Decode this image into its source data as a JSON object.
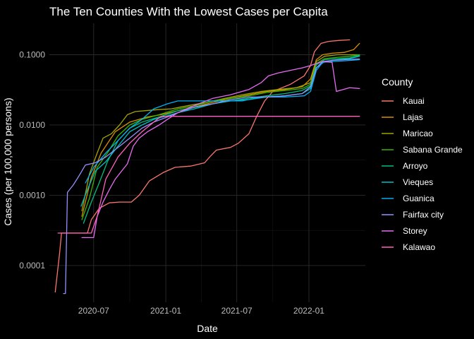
{
  "chart_data": {
    "type": "line",
    "title": "The Ten Counties With the Lowest Cases per Capita",
    "xlabel": "Date",
    "ylabel": "Cases (per 100,000 persons)",
    "x_ticks": [
      "2020-07",
      "2021-01",
      "2021-07",
      "2022-01"
    ],
    "y_ticks": [
      {
        "value": 0.0001,
        "label": "0.0001"
      },
      {
        "value": 0.001,
        "label": "0.0010"
      },
      {
        "value": 0.01,
        "label": "0.0100"
      },
      {
        "value": 0.1,
        "label": "0.1000"
      }
    ],
    "xlim": [
      "2020-03-10",
      "2022-05-25"
    ],
    "ylim": [
      3e-05,
      0.28
    ],
    "y_scale": "log10",
    "grid": true,
    "legend_title": "County",
    "legend_position": "right",
    "series": [
      {
        "name": "Kauai",
        "color": "#F8766D",
        "points": [
          [
            "2020-03-25",
            4.2e-05
          ],
          [
            "2020-04-05",
            0.00015
          ],
          [
            "2020-04-10",
            0.00029
          ],
          [
            "2020-05-15",
            0.00029
          ],
          [
            "2020-06-15",
            0.00029
          ],
          [
            "2020-06-25",
            0.00045
          ],
          [
            "2020-07-15",
            0.00065
          ],
          [
            "2020-08-10",
            0.00078
          ],
          [
            "2020-09-05",
            0.0008
          ],
          [
            "2020-10-05",
            0.0008
          ],
          [
            "2020-10-25",
            0.001
          ],
          [
            "2020-11-20",
            0.0016
          ],
          [
            "2020-12-25",
            0.0021
          ],
          [
            "2021-01-25",
            0.0025
          ],
          [
            "2021-03-05",
            0.0026
          ],
          [
            "2021-04-10",
            0.0029
          ],
          [
            "2021-04-25",
            0.0036
          ],
          [
            "2021-05-10",
            0.0044
          ],
          [
            "2021-06-15",
            0.0048
          ],
          [
            "2021-07-05",
            0.0055
          ],
          [
            "2021-08-01",
            0.0075
          ],
          [
            "2021-08-20",
            0.013
          ],
          [
            "2021-09-10",
            0.022
          ],
          [
            "2021-10-01",
            0.03
          ],
          [
            "2021-11-15",
            0.038
          ],
          [
            "2021-12-20",
            0.05
          ],
          [
            "2022-01-05",
            0.07
          ],
          [
            "2022-01-15",
            0.11
          ],
          [
            "2022-02-01",
            0.145
          ],
          [
            "2022-02-20",
            0.155
          ],
          [
            "2022-03-20",
            0.16
          ],
          [
            "2022-04-15",
            0.163
          ]
        ]
      },
      {
        "name": "Lajas",
        "color": "#D89000",
        "points": [
          [
            "2020-06-01",
            0.0005
          ],
          [
            "2020-06-25",
            0.0018
          ],
          [
            "2020-07-20",
            0.004
          ],
          [
            "2020-08-25",
            0.008
          ],
          [
            "2020-10-01",
            0.011
          ],
          [
            "2020-11-15",
            0.013
          ],
          [
            "2020-12-20",
            0.014
          ],
          [
            "2021-02-01",
            0.016
          ],
          [
            "2021-03-15",
            0.018
          ],
          [
            "2021-05-01",
            0.021
          ],
          [
            "2021-06-15",
            0.024
          ],
          [
            "2021-08-01",
            0.027
          ],
          [
            "2021-09-15",
            0.03
          ],
          [
            "2021-11-01",
            0.032
          ],
          [
            "2021-12-15",
            0.035
          ],
          [
            "2022-01-05",
            0.045
          ],
          [
            "2022-01-20",
            0.085
          ],
          [
            "2022-02-05",
            0.1
          ],
          [
            "2022-03-01",
            0.105
          ],
          [
            "2022-04-01",
            0.108
          ],
          [
            "2022-04-25",
            0.118
          ],
          [
            "2022-05-10",
            0.145
          ]
        ]
      },
      {
        "name": "Maricao",
        "color": "#A3A500",
        "points": [
          [
            "2020-06-01",
            0.0006
          ],
          [
            "2020-06-20",
            0.002
          ],
          [
            "2020-07-10",
            0.004
          ],
          [
            "2020-07-25",
            0.0065
          ],
          [
            "2020-08-15",
            0.0075
          ],
          [
            "2020-09-05",
            0.01
          ],
          [
            "2020-09-25",
            0.014
          ],
          [
            "2020-10-15",
            0.0155
          ],
          [
            "2020-11-10",
            0.016
          ],
          [
            "2020-12-10",
            0.0165
          ],
          [
            "2021-01-15",
            0.017
          ],
          [
            "2021-03-01",
            0.019
          ],
          [
            "2021-04-15",
            0.021
          ],
          [
            "2021-06-01",
            0.024
          ],
          [
            "2021-07-15",
            0.027
          ],
          [
            "2021-09-01",
            0.03
          ],
          [
            "2021-10-15",
            0.032
          ],
          [
            "2021-12-01",
            0.034
          ],
          [
            "2022-01-05",
            0.04
          ],
          [
            "2022-01-20",
            0.08
          ],
          [
            "2022-02-10",
            0.095
          ],
          [
            "2022-03-15",
            0.1
          ],
          [
            "2022-04-15",
            0.1
          ],
          [
            "2022-05-10",
            0.1
          ]
        ]
      },
      {
        "name": "Sabana Grande",
        "color": "#39B600",
        "points": [
          [
            "2020-06-01",
            0.00045
          ],
          [
            "2020-06-20",
            0.0009
          ],
          [
            "2020-07-10",
            0.0025
          ],
          [
            "2020-08-05",
            0.004
          ],
          [
            "2020-09-01",
            0.007
          ],
          [
            "2020-10-01",
            0.01
          ],
          [
            "2020-11-01",
            0.012
          ],
          [
            "2020-12-15",
            0.014
          ],
          [
            "2021-02-01",
            0.017
          ],
          [
            "2021-03-20",
            0.019
          ],
          [
            "2021-05-01",
            0.022
          ],
          [
            "2021-06-15",
            0.024
          ],
          [
            "2021-08-01",
            0.026
          ],
          [
            "2021-09-15",
            0.029
          ],
          [
            "2021-11-01",
            0.031
          ],
          [
            "2021-12-15",
            0.033
          ],
          [
            "2022-01-05",
            0.038
          ],
          [
            "2022-01-20",
            0.075
          ],
          [
            "2022-02-10",
            0.088
          ],
          [
            "2022-03-15",
            0.092
          ],
          [
            "2022-04-15",
            0.095
          ],
          [
            "2022-05-10",
            0.1
          ]
        ]
      },
      {
        "name": "Arroyo",
        "color": "#00BF7D",
        "points": [
          [
            "2020-06-05",
            0.0004
          ],
          [
            "2020-06-25",
            0.0008
          ],
          [
            "2020-07-15",
            0.0015
          ],
          [
            "2020-08-05",
            0.003
          ],
          [
            "2020-09-01",
            0.006
          ],
          [
            "2020-10-01",
            0.009
          ],
          [
            "2020-11-01",
            0.011
          ],
          [
            "2020-12-15",
            0.013
          ],
          [
            "2021-02-01",
            0.016
          ],
          [
            "2021-03-20",
            0.018
          ],
          [
            "2021-05-01",
            0.02
          ],
          [
            "2021-06-15",
            0.022
          ],
          [
            "2021-08-01",
            0.024
          ],
          [
            "2021-09-15",
            0.026
          ],
          [
            "2021-11-01",
            0.028
          ],
          [
            "2021-12-15",
            0.031
          ],
          [
            "2022-01-05",
            0.036
          ],
          [
            "2022-01-20",
            0.072
          ],
          [
            "2022-02-10",
            0.085
          ],
          [
            "2022-03-15",
            0.088
          ],
          [
            "2022-04-15",
            0.09
          ],
          [
            "2022-05-10",
            0.098
          ]
        ]
      },
      {
        "name": "Vieques",
        "color": "#00BFC4",
        "points": [
          [
            "2020-05-30",
            0.0007
          ],
          [
            "2020-06-15",
            0.0012
          ],
          [
            "2020-07-05",
            0.0022
          ],
          [
            "2020-08-01",
            0.003
          ],
          [
            "2020-09-01",
            0.005
          ],
          [
            "2020-10-01",
            0.008
          ],
          [
            "2020-11-01",
            0.01
          ],
          [
            "2020-12-01",
            0.012
          ],
          [
            "2021-01-05",
            0.0135
          ],
          [
            "2021-02-01",
            0.015
          ],
          [
            "2021-03-15",
            0.017
          ],
          [
            "2021-05-01",
            0.02
          ],
          [
            "2021-06-15",
            0.022
          ],
          [
            "2021-08-01",
            0.023
          ],
          [
            "2021-09-15",
            0.025
          ],
          [
            "2021-11-01",
            0.026
          ],
          [
            "2021-12-15",
            0.028
          ],
          [
            "2022-01-05",
            0.033
          ],
          [
            "2022-01-20",
            0.065
          ],
          [
            "2022-02-10",
            0.08
          ],
          [
            "2022-03-15",
            0.085
          ],
          [
            "2022-04-15",
            0.088
          ],
          [
            "2022-05-10",
            0.095
          ]
        ]
      },
      {
        "name": "Guanica",
        "color": "#00B0F6",
        "points": [
          [
            "2020-06-10",
            0.0015
          ],
          [
            "2020-07-01",
            0.0025
          ],
          [
            "2020-08-01",
            0.004
          ],
          [
            "2020-09-01",
            0.006
          ],
          [
            "2020-10-01",
            0.009
          ],
          [
            "2020-11-01",
            0.012
          ],
          [
            "2020-12-01",
            0.017
          ],
          [
            "2021-01-05",
            0.02
          ],
          [
            "2021-02-01",
            0.022
          ],
          [
            "2021-03-15",
            0.022
          ],
          [
            "2021-05-01",
            0.022
          ],
          [
            "2021-06-15",
            0.022
          ],
          [
            "2021-07-15",
            0.022
          ],
          [
            "2021-08-15",
            0.024
          ],
          [
            "2021-09-15",
            0.025
          ],
          [
            "2021-11-01",
            0.025
          ],
          [
            "2021-12-20",
            0.026
          ],
          [
            "2022-01-05",
            0.03
          ],
          [
            "2022-01-20",
            0.06
          ],
          [
            "2022-02-05",
            0.078
          ],
          [
            "2022-03-01",
            0.08
          ],
          [
            "2022-04-01",
            0.082
          ],
          [
            "2022-05-10",
            0.085
          ]
        ]
      },
      {
        "name": "Fairfax city",
        "color": "#9590FF",
        "points": [
          [
            "2020-04-15",
            4e-05
          ],
          [
            "2020-04-20",
            4e-05
          ],
          [
            "2020-04-25",
            0.0011
          ],
          [
            "2020-05-10",
            0.0014
          ],
          [
            "2020-05-25",
            0.0019
          ],
          [
            "2020-06-10",
            0.0027
          ],
          [
            "2020-07-05",
            0.0029
          ],
          [
            "2020-08-01",
            0.0035
          ],
          [
            "2020-09-01",
            0.0048
          ],
          [
            "2020-10-01",
            0.0065
          ],
          [
            "2020-11-01",
            0.009
          ],
          [
            "2020-12-01",
            0.011
          ],
          [
            "2021-01-05",
            0.013
          ],
          [
            "2021-02-01",
            0.015
          ],
          [
            "2021-03-15",
            0.018
          ],
          [
            "2021-05-01",
            0.02
          ],
          [
            "2021-06-15",
            0.023
          ],
          [
            "2021-08-01",
            0.025
          ],
          [
            "2021-09-15",
            0.025
          ],
          [
            "2021-11-01",
            0.026
          ],
          [
            "2021-12-15",
            0.028
          ],
          [
            "2022-01-05",
            0.035
          ],
          [
            "2022-01-20",
            0.065
          ],
          [
            "2022-02-05",
            0.08
          ],
          [
            "2022-03-01",
            0.083
          ],
          [
            "2022-04-01",
            0.085
          ],
          [
            "2022-05-10",
            0.087
          ]
        ]
      },
      {
        "name": "Storey",
        "color": "#E76BF3",
        "points": [
          [
            "2020-06-01",
            0.00025
          ],
          [
            "2020-06-20",
            0.00025
          ],
          [
            "2020-07-01",
            0.00025
          ],
          [
            "2020-07-10",
            0.0005
          ],
          [
            "2020-07-25",
            0.0008
          ],
          [
            "2020-08-10",
            0.0012
          ],
          [
            "2020-08-25",
            0.0017
          ],
          [
            "2020-09-10",
            0.0022
          ],
          [
            "2020-09-25",
            0.0028
          ],
          [
            "2020-10-10",
            0.005
          ],
          [
            "2020-10-25",
            0.0065
          ],
          [
            "2020-11-15",
            0.008
          ],
          [
            "2020-12-15",
            0.01
          ],
          [
            "2021-01-05",
            0.012
          ],
          [
            "2021-02-01",
            0.015
          ],
          [
            "2021-03-15",
            0.019
          ],
          [
            "2021-05-01",
            0.024
          ],
          [
            "2021-06-15",
            0.027
          ],
          [
            "2021-08-01",
            0.032
          ],
          [
            "2021-09-01",
            0.04
          ],
          [
            "2021-09-20",
            0.05
          ],
          [
            "2021-10-15",
            0.055
          ],
          [
            "2021-11-15",
            0.06
          ],
          [
            "2021-12-15",
            0.065
          ],
          [
            "2022-01-05",
            0.07
          ],
          [
            "2022-01-20",
            0.075
          ],
          [
            "2022-02-05",
            0.08
          ],
          [
            "2022-03-01",
            0.078
          ],
          [
            "2022-03-12",
            0.03
          ],
          [
            "2022-04-15",
            0.034
          ],
          [
            "2022-05-10",
            0.033
          ]
        ]
      },
      {
        "name": "Kalawao",
        "color": "#FF62BC",
        "points": [
          [
            "2020-04-01",
            0.00029
          ],
          [
            "2020-06-25",
            0.00029
          ],
          [
            "2020-07-10",
            0.0005
          ],
          [
            "2020-08-01",
            0.0017
          ],
          [
            "2020-09-01",
            0.0035
          ],
          [
            "2020-10-01",
            0.0055
          ],
          [
            "2020-11-01",
            0.008
          ],
          [
            "2020-12-01",
            0.011
          ],
          [
            "2020-12-20",
            0.0133
          ],
          [
            "2021-01-01",
            0.0133
          ],
          [
            "2022-05-10",
            0.0133
          ]
        ]
      }
    ]
  }
}
